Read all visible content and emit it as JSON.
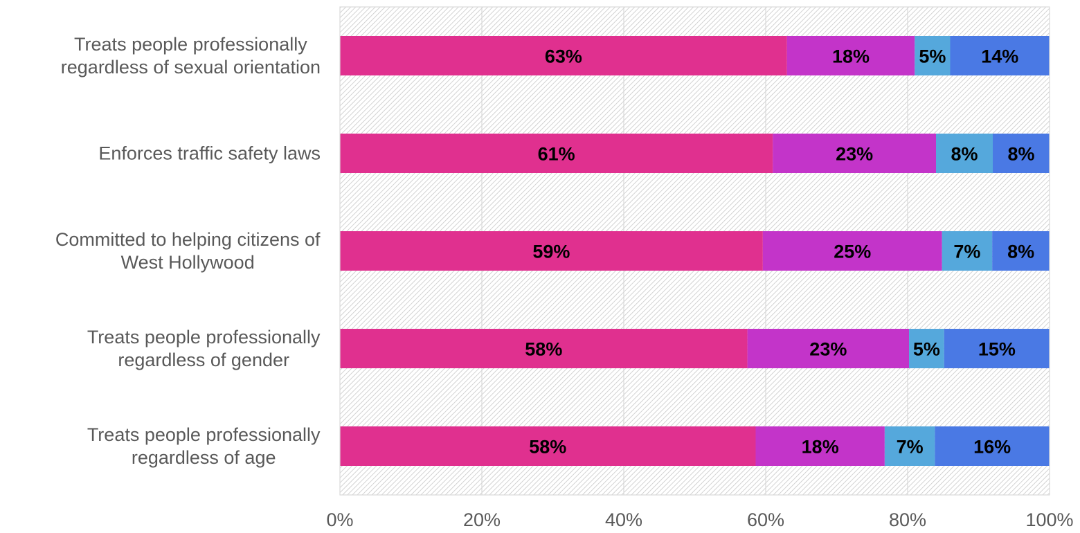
{
  "chart_data": {
    "type": "bar",
    "orientation": "horizontal",
    "stacked": true,
    "categories": [
      [
        "Treats people professionally",
        "regardless of sexual orientation"
      ],
      [
        "Enforces traffic safety laws"
      ],
      [
        "Committed to helping citizens of",
        "West Hollywood"
      ],
      [
        "Treats people professionally",
        "regardless of gender"
      ],
      [
        "Treats people professionally",
        "regardless of age"
      ]
    ],
    "series": [
      {
        "color": "#e0308f",
        "values": [
          63,
          61,
          59,
          58,
          58
        ],
        "labels": [
          "63%",
          "61%",
          "59%",
          "58%",
          "58%"
        ]
      },
      {
        "color": "#c334c9",
        "values": [
          18,
          23,
          25,
          23,
          18
        ],
        "labels": [
          "18%",
          "23%",
          "25%",
          "23%",
          "18%"
        ]
      },
      {
        "color": "#55a8dc",
        "values": [
          5,
          8,
          7,
          5,
          7
        ],
        "labels": [
          "5%",
          "8%",
          "7%",
          "5%",
          "7%"
        ]
      },
      {
        "color": "#4a79e4",
        "values": [
          14,
          8,
          8,
          15,
          16
        ],
        "labels": [
          "14%",
          "8%",
          "8%",
          "15%",
          "16%"
        ]
      }
    ],
    "xlim": [
      0,
      100
    ],
    "xticks": [
      "0%",
      "20%",
      "40%",
      "60%",
      "80%",
      "100%"
    ],
    "grid": true,
    "legend": "none"
  }
}
